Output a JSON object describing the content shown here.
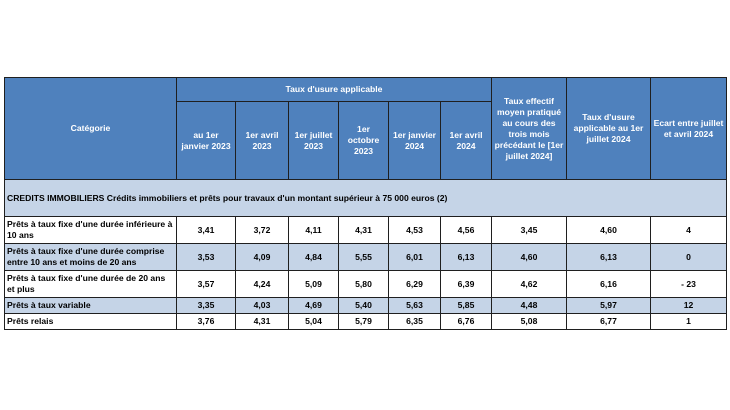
{
  "header": {
    "categorie": "Catégorie",
    "group_label": "Taux d'usure applicable",
    "periods": [
      "au 1er janvier 2023",
      "1er avril 2023",
      "1er juillet 2023",
      "1er octobre 2023",
      "1er janvier 2024",
      "1er avril 2024"
    ],
    "taux_effectif": "Taux effectif moyen pratiqué au cours des trois mois précédant le [1er juillet 2024]",
    "taux_usure_juillet": "Taux d'usure applicable au 1er juillet 2024",
    "ecart": "Ecart entre juillet et avril 2024"
  },
  "section_title": "CREDITS IMMOBILIERS Crédits immobiliers et prêts pour travaux d'un montant supérieur à 75 000 euros (2)",
  "rows": [
    {
      "label": "Prêts à taux fixe d'une durée inférieure à 10 ans",
      "values": [
        "3,41",
        "3,72",
        "4,11",
        "4,31",
        "4,53",
        "4,56"
      ],
      "taux_effectif": "3,45",
      "taux_usure": "4,60",
      "ecart": "4"
    },
    {
      "label": "Prêts à taux fixe d'une durée comprise entre 10 ans et moins de 20 ans",
      "values": [
        "3,53",
        "4,09",
        "4,84",
        "5,55",
        "6,01",
        "6,13"
      ],
      "taux_effectif": "4,60",
      "taux_usure": "6,13",
      "ecart": "0"
    },
    {
      "label": "Prêts à taux fixe d'une durée de 20 ans et plus",
      "values": [
        "3,57",
        "4,24",
        "5,09",
        "5,80",
        "6,29",
        "6,39"
      ],
      "taux_effectif": "4,62",
      "taux_usure": "6,16",
      "ecart": "- 23"
    },
    {
      "label": "Prêts à taux variable",
      "values": [
        "3,35",
        "4,03",
        "4,69",
        "5,40",
        "5,63",
        "5,85"
      ],
      "taux_effectif": "4,48",
      "taux_usure": "5,97",
      "ecart": "12"
    },
    {
      "label": "Prêts relais",
      "values": [
        "3,76",
        "4,31",
        "5,04",
        "5,79",
        "6,35",
        "6,76"
      ],
      "taux_effectif": "5,08",
      "taux_usure": "6,77",
      "ecart": "1"
    }
  ],
  "colors": {
    "header_bg": "#4f81bd",
    "band_bg": "#c5d4e7",
    "border": "#1f1f1f"
  }
}
